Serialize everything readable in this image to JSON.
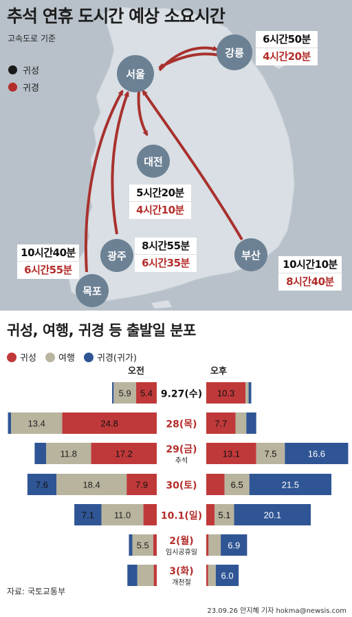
{
  "header": {
    "title": "추석 연휴 도시간 예상 소요시간",
    "subtitle": "고속도로 기준",
    "legend": [
      {
        "label": "귀성",
        "color": "#1a1a1a"
      },
      {
        "label": "귀경",
        "color": "#b32d2a"
      }
    ]
  },
  "cities": [
    {
      "name": "서울"
    },
    {
      "name": "강릉"
    },
    {
      "name": "대전"
    },
    {
      "name": "광주"
    },
    {
      "name": "목포"
    },
    {
      "name": "부산"
    }
  ],
  "routes": [
    {
      "to": "강릉",
      "homecoming": "6시간50분",
      "return": "4시간20분"
    },
    {
      "to": "대전",
      "homecoming": "5시간20분",
      "return": "4시간10분"
    },
    {
      "to": "목포",
      "homecoming": "10시간40분",
      "return": "6시간55분"
    },
    {
      "to": "광주",
      "homecoming": "8시간55분",
      "return": "6시간35분"
    },
    {
      "to": "부산",
      "homecoming": "10시간10분",
      "return": "8시간40분"
    }
  ],
  "chart_data": {
    "type": "bar",
    "title": "귀성, 여행, 귀경 등 출발일 분포",
    "series": [
      {
        "name": "귀성",
        "color": "#c0393a"
      },
      {
        "name": "여행",
        "color": "#b8b49e"
      },
      {
        "name": "귀경(귀가)",
        "color": "#2f5595"
      }
    ],
    "columns": [
      "오전",
      "오후"
    ],
    "categories": [
      {
        "label": "9.27(수)",
        "note": "",
        "label_color": "#111111",
        "am": [
          5.4,
          5.9,
          0.4
        ],
        "pm": [
          10.3,
          0.8,
          0.7
        ]
      },
      {
        "label": "28(목)",
        "note": "",
        "label_color": "#b32d2a",
        "am": [
          24.8,
          13.4,
          0.8
        ],
        "pm": [
          7.7,
          2.8,
          2.6
        ]
      },
      {
        "label": "29(금)",
        "note": "추석",
        "label_color": "#b32d2a",
        "am": [
          17.2,
          11.8,
          3.0
        ],
        "pm": [
          13.1,
          7.5,
          16.6
        ]
      },
      {
        "label": "30(토)",
        "note": "",
        "label_color": "#b32d2a",
        "am": [
          7.9,
          18.4,
          7.6
        ],
        "pm": [
          4.8,
          6.5,
          21.5
        ]
      },
      {
        "label": "10.1(일)",
        "note": "",
        "label_color": "#b32d2a",
        "am": [
          3.5,
          11.0,
          7.1
        ],
        "pm": [
          2.2,
          5.1,
          20.1
        ]
      },
      {
        "label": "2(월)",
        "note": "임시공휴일",
        "label_color": "#b32d2a",
        "am": [
          0.9,
          5.5,
          0.9
        ],
        "pm": [
          0.6,
          3.2,
          6.9
        ]
      },
      {
        "label": "3(화)",
        "note": "개천절",
        "label_color": "#b32d2a",
        "am": [
          0.8,
          4.3,
          2.6
        ],
        "pm": [
          0.5,
          2.0,
          6.0
        ]
      }
    ],
    "value_labels": {
      "am": [
        [
          "5.4",
          "5.9",
          ""
        ],
        [
          "24.8",
          "13.4",
          ""
        ],
        [
          "17.2",
          "11.8",
          ""
        ],
        [
          "7.9",
          "18.4",
          "7.6"
        ],
        [
          "",
          "11.0",
          "7.1"
        ],
        [
          "",
          "5.5",
          ""
        ],
        [
          "",
          "",
          ""
        ]
      ],
      "pm": [
        [
          "10.3",
          "",
          ""
        ],
        [
          "7.7",
          "",
          ""
        ],
        [
          "13.1",
          "7.5",
          "16.6"
        ],
        [
          "",
          "6.5",
          "21.5"
        ],
        [
          "",
          "5.1",
          "20.1"
        ],
        [
          "",
          "",
          "6.9"
        ],
        [
          "",
          "",
          "6.0"
        ]
      ]
    }
  },
  "footer": {
    "source": "자료: 국토교통부",
    "credit": "23.09.26 안지혜 기자 hokma@newsis.com"
  }
}
